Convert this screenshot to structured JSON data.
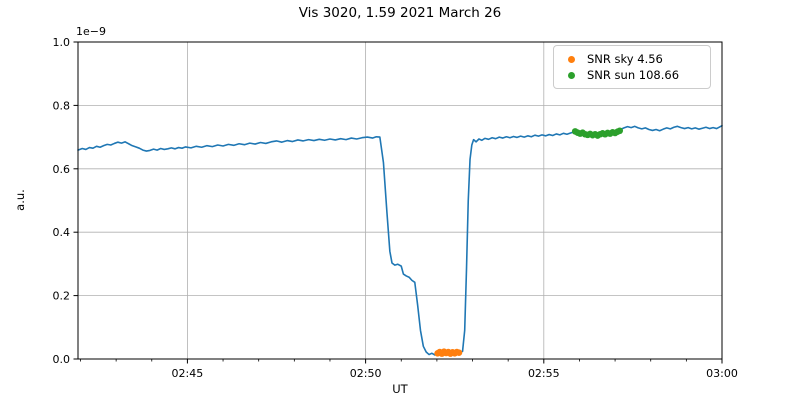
{
  "figure": {
    "background": "#ffffff"
  },
  "chart_data": {
    "type": "line",
    "title": "Vis 3020, 1.59 2021 March 26",
    "xlabel": "UT",
    "ylabel": "a.u.",
    "y_offset_label": "1e−9",
    "x_unit": "minutes after 02:00 UT",
    "xlim": [
      41.93,
      60.0
    ],
    "ylim": [
      0.0,
      1.0
    ],
    "grid": true,
    "grid_color": "#b0b0b0",
    "spine_color": "#000000",
    "x_major_ticks": [
      {
        "t": 45,
        "label": "02:45"
      },
      {
        "t": 50,
        "label": "02:50"
      },
      {
        "t": 55,
        "label": "02:55"
      },
      {
        "t": 60,
        "label": "03:00"
      }
    ],
    "x_minor_ticks": [
      42,
      43,
      44,
      46,
      47,
      48,
      49,
      51,
      52,
      53,
      54,
      56,
      57,
      58,
      59
    ],
    "y_ticks": [
      {
        "v": 0.0,
        "label": "0.0"
      },
      {
        "v": 0.2,
        "label": "0.2"
      },
      {
        "v": 0.4,
        "label": "0.4"
      },
      {
        "v": 0.6,
        "label": "0.6"
      },
      {
        "v": 0.8,
        "label": "0.8"
      },
      {
        "v": 1.0,
        "label": "1.0"
      }
    ],
    "snr_sky": 4.56,
    "snr_sun": 108.66,
    "legend": {
      "position": "upper right",
      "entries": [
        {
          "label": "SNR sky 4.56",
          "color": "#ff7f0e"
        },
        {
          "label": "SNR sun 108.66",
          "color": "#2ca02c"
        }
      ]
    },
    "series": [
      {
        "name": "flux-curve",
        "type": "line",
        "color": "#1f77b4",
        "width": 1.6,
        "points": [
          [
            41.93,
            0.659
          ],
          [
            42.05,
            0.664
          ],
          [
            42.15,
            0.661
          ],
          [
            42.25,
            0.667
          ],
          [
            42.35,
            0.665
          ],
          [
            42.45,
            0.671
          ],
          [
            42.55,
            0.668
          ],
          [
            42.65,
            0.673
          ],
          [
            42.75,
            0.677
          ],
          [
            42.85,
            0.675
          ],
          [
            42.95,
            0.68
          ],
          [
            43.05,
            0.684
          ],
          [
            43.15,
            0.681
          ],
          [
            43.25,
            0.685
          ],
          [
            43.35,
            0.679
          ],
          [
            43.45,
            0.673
          ],
          [
            43.55,
            0.669
          ],
          [
            43.65,
            0.665
          ],
          [
            43.75,
            0.659
          ],
          [
            43.85,
            0.656
          ],
          [
            43.95,
            0.658
          ],
          [
            44.05,
            0.662
          ],
          [
            44.15,
            0.659
          ],
          [
            44.25,
            0.664
          ],
          [
            44.35,
            0.661
          ],
          [
            44.45,
            0.663
          ],
          [
            44.55,
            0.666
          ],
          [
            44.65,
            0.663
          ],
          [
            44.75,
            0.667
          ],
          [
            44.85,
            0.665
          ],
          [
            44.95,
            0.669
          ],
          [
            45.1,
            0.666
          ],
          [
            45.25,
            0.671
          ],
          [
            45.4,
            0.668
          ],
          [
            45.55,
            0.673
          ],
          [
            45.7,
            0.67
          ],
          [
            45.85,
            0.675
          ],
          [
            46.0,
            0.672
          ],
          [
            46.15,
            0.677
          ],
          [
            46.3,
            0.674
          ],
          [
            46.45,
            0.679
          ],
          [
            46.6,
            0.676
          ],
          [
            46.75,
            0.681
          ],
          [
            46.9,
            0.678
          ],
          [
            47.05,
            0.683
          ],
          [
            47.2,
            0.68
          ],
          [
            47.35,
            0.685
          ],
          [
            47.5,
            0.688
          ],
          [
            47.65,
            0.684
          ],
          [
            47.8,
            0.689
          ],
          [
            47.95,
            0.686
          ],
          [
            48.1,
            0.691
          ],
          [
            48.25,
            0.688
          ],
          [
            48.4,
            0.692
          ],
          [
            48.55,
            0.689
          ],
          [
            48.7,
            0.693
          ],
          [
            48.85,
            0.69
          ],
          [
            49.0,
            0.694
          ],
          [
            49.15,
            0.691
          ],
          [
            49.3,
            0.695
          ],
          [
            49.45,
            0.692
          ],
          [
            49.6,
            0.697
          ],
          [
            49.75,
            0.694
          ],
          [
            49.9,
            0.698
          ],
          [
            50.05,
            0.7
          ],
          [
            50.2,
            0.697
          ],
          [
            50.3,
            0.701
          ],
          [
            50.4,
            0.7
          ],
          [
            50.5,
            0.62
          ],
          [
            50.6,
            0.46
          ],
          [
            50.68,
            0.34
          ],
          [
            50.74,
            0.303
          ],
          [
            50.82,
            0.296
          ],
          [
            50.9,
            0.299
          ],
          [
            51.0,
            0.293
          ],
          [
            51.06,
            0.268
          ],
          [
            51.14,
            0.262
          ],
          [
            51.22,
            0.258
          ],
          [
            51.3,
            0.248
          ],
          [
            51.38,
            0.242
          ],
          [
            51.46,
            0.17
          ],
          [
            51.54,
            0.09
          ],
          [
            51.62,
            0.04
          ],
          [
            51.7,
            0.022
          ],
          [
            51.78,
            0.014
          ],
          [
            51.86,
            0.018
          ],
          [
            51.94,
            0.013
          ],
          [
            52.02,
            0.02
          ],
          [
            52.1,
            0.016
          ],
          [
            52.18,
            0.022
          ],
          [
            52.26,
            0.017
          ],
          [
            52.34,
            0.021
          ],
          [
            52.42,
            0.016
          ],
          [
            52.5,
            0.02
          ],
          [
            52.58,
            0.018
          ],
          [
            52.66,
            0.022
          ],
          [
            52.72,
            0.024
          ],
          [
            52.78,
            0.09
          ],
          [
            52.83,
            0.28
          ],
          [
            52.88,
            0.5
          ],
          [
            52.93,
            0.63
          ],
          [
            52.98,
            0.675
          ],
          [
            53.03,
            0.692
          ],
          [
            53.1,
            0.685
          ],
          [
            53.18,
            0.694
          ],
          [
            53.26,
            0.69
          ],
          [
            53.35,
            0.696
          ],
          [
            53.45,
            0.693
          ],
          [
            53.55,
            0.698
          ],
          [
            53.65,
            0.695
          ],
          [
            53.75,
            0.7
          ],
          [
            53.85,
            0.697
          ],
          [
            53.95,
            0.701
          ],
          [
            54.05,
            0.698
          ],
          [
            54.15,
            0.702
          ],
          [
            54.25,
            0.699
          ],
          [
            54.35,
            0.703
          ],
          [
            54.45,
            0.7
          ],
          [
            54.55,
            0.704
          ],
          [
            54.65,
            0.701
          ],
          [
            54.75,
            0.706
          ],
          [
            54.85,
            0.703
          ],
          [
            54.95,
            0.707
          ],
          [
            55.05,
            0.704
          ],
          [
            55.15,
            0.708
          ],
          [
            55.25,
            0.705
          ],
          [
            55.35,
            0.71
          ],
          [
            55.45,
            0.707
          ],
          [
            55.55,
            0.712
          ],
          [
            55.65,
            0.709
          ],
          [
            55.75,
            0.713
          ],
          [
            55.85,
            0.716
          ],
          [
            55.95,
            0.712
          ],
          [
            56.05,
            0.716
          ],
          [
            56.15,
            0.713
          ],
          [
            56.25,
            0.71
          ],
          [
            56.35,
            0.713
          ],
          [
            56.45,
            0.709
          ],
          [
            56.55,
            0.712
          ],
          [
            56.65,
            0.715
          ],
          [
            56.75,
            0.711
          ],
          [
            56.85,
            0.715
          ],
          [
            56.95,
            0.718
          ],
          [
            57.05,
            0.721
          ],
          [
            57.15,
            0.724
          ],
          [
            57.25,
            0.729
          ],
          [
            57.35,
            0.733
          ],
          [
            57.45,
            0.73
          ],
          [
            57.55,
            0.734
          ],
          [
            57.65,
            0.729
          ],
          [
            57.75,
            0.726
          ],
          [
            57.85,
            0.729
          ],
          [
            57.95,
            0.724
          ],
          [
            58.05,
            0.721
          ],
          [
            58.15,
            0.724
          ],
          [
            58.25,
            0.72
          ],
          [
            58.35,
            0.725
          ],
          [
            58.45,
            0.729
          ],
          [
            58.55,
            0.726
          ],
          [
            58.65,
            0.731
          ],
          [
            58.75,
            0.734
          ],
          [
            58.85,
            0.73
          ],
          [
            58.95,
            0.727
          ],
          [
            59.05,
            0.73
          ],
          [
            59.15,
            0.726
          ],
          [
            59.25,
            0.729
          ],
          [
            59.35,
            0.725
          ],
          [
            59.45,
            0.728
          ],
          [
            59.55,
            0.731
          ],
          [
            59.65,
            0.727
          ],
          [
            59.75,
            0.73
          ],
          [
            59.85,
            0.727
          ],
          [
            60.0,
            0.736
          ]
        ]
      },
      {
        "name": "snr-sky-markers",
        "type": "scatter",
        "color": "#ff7f0e",
        "radius": 3.3,
        "points": [
          [
            52.02,
            0.018
          ],
          [
            52.08,
            0.022
          ],
          [
            52.14,
            0.017
          ],
          [
            52.2,
            0.023
          ],
          [
            52.26,
            0.019
          ],
          [
            52.32,
            0.022
          ],
          [
            52.38,
            0.017
          ],
          [
            52.44,
            0.021
          ],
          [
            52.5,
            0.018
          ],
          [
            52.56,
            0.022
          ],
          [
            52.62,
            0.02
          ]
        ]
      },
      {
        "name": "snr-sun-markers",
        "type": "scatter",
        "color": "#2ca02c",
        "radius": 3.3,
        "points": [
          [
            55.88,
            0.718
          ],
          [
            55.95,
            0.714
          ],
          [
            56.02,
            0.711
          ],
          [
            56.09,
            0.714
          ],
          [
            56.16,
            0.709
          ],
          [
            56.23,
            0.707
          ],
          [
            56.3,
            0.71
          ],
          [
            56.37,
            0.706
          ],
          [
            56.44,
            0.709
          ],
          [
            56.51,
            0.705
          ],
          [
            56.58,
            0.709
          ],
          [
            56.65,
            0.712
          ],
          [
            56.72,
            0.709
          ],
          [
            56.79,
            0.713
          ],
          [
            56.86,
            0.711
          ],
          [
            56.93,
            0.715
          ],
          [
            57.0,
            0.713
          ],
          [
            57.07,
            0.717
          ],
          [
            57.13,
            0.72
          ]
        ]
      }
    ]
  }
}
